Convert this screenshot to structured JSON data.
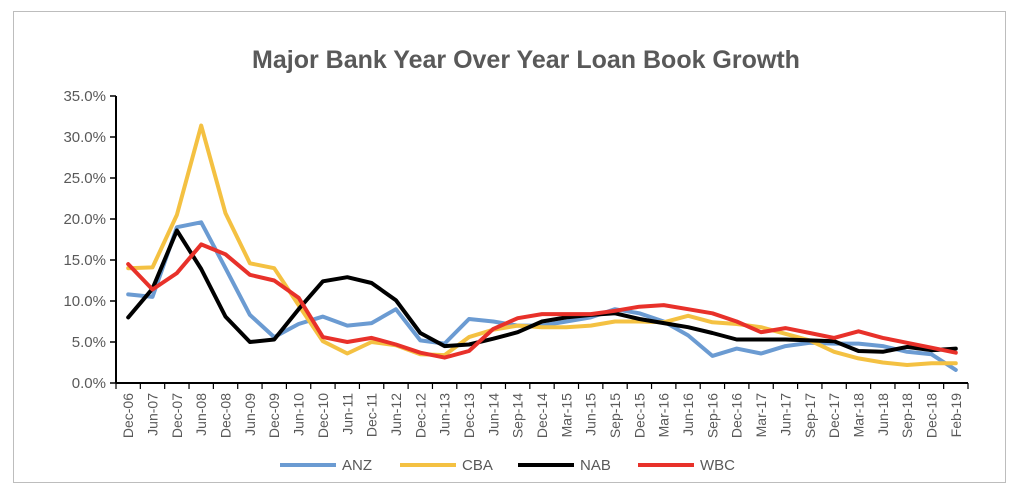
{
  "chart_data": {
    "type": "line",
    "title": "Major Bank Year Over Year Loan Book Growth",
    "xlabel": "",
    "ylabel": "",
    "ylim": [
      0,
      35
    ],
    "yticks": [
      "0.0%",
      "5.0%",
      "10.0%",
      "15.0%",
      "20.0%",
      "25.0%",
      "30.0%",
      "35.0%"
    ],
    "categories": [
      "Dec-06",
      "Jun-07",
      "Dec-07",
      "Jun-08",
      "Dec-08",
      "Jun-09",
      "Dec-09",
      "Jun-10",
      "Dec-10",
      "Jun-11",
      "Dec-11",
      "Jun-12",
      "Dec-12",
      "Jun-13",
      "Dec-13",
      "Jun-14",
      "Sep-14",
      "Dec-14",
      "Mar-15",
      "Jun-15",
      "Sep-15",
      "Dec-15",
      "Mar-16",
      "Jun-16",
      "Sep-16",
      "Dec-16",
      "Mar-17",
      "Jun-17",
      "Sep-17",
      "Dec-17",
      "Mar-18",
      "Jun-18",
      "Sep-18",
      "Dec-18",
      "Feb-19"
    ],
    "grid": false,
    "legend": "bottom",
    "series": [
      {
        "name": "ANZ",
        "color": "#6b9bd2",
        "values": [
          10.8,
          10.5,
          19.0,
          19.6,
          14.0,
          8.3,
          5.6,
          7.2,
          8.1,
          7.0,
          7.3,
          9.0,
          5.2,
          4.8,
          7.8,
          7.5,
          7.0,
          7.0,
          7.5,
          8.0,
          9.0,
          8.5,
          7.5,
          5.8,
          3.3,
          4.2,
          3.6,
          4.5,
          4.9,
          4.8,
          4.8,
          4.5,
          3.8,
          3.5,
          1.6
        ]
      },
      {
        "name": "CBA",
        "color": "#f4c142",
        "values": [
          14.0,
          14.1,
          20.5,
          31.4,
          20.7,
          14.6,
          14.0,
          9.5,
          5.1,
          3.6,
          5.0,
          4.6,
          3.5,
          3.4,
          5.6,
          6.5,
          7.0,
          6.8,
          6.8,
          7.0,
          7.5,
          7.5,
          7.4,
          8.2,
          7.4,
          7.2,
          6.8,
          6.0,
          5.2,
          3.8,
          3.0,
          2.5,
          2.2,
          2.4,
          2.4
        ]
      },
      {
        "name": "NAB",
        "color": "#000000",
        "values": [
          8.0,
          11.5,
          18.6,
          13.9,
          8.1,
          5.0,
          5.3,
          9.0,
          12.4,
          12.9,
          12.2,
          10.1,
          6.1,
          4.5,
          4.7,
          5.4,
          6.2,
          7.5,
          8.0,
          8.3,
          8.5,
          7.8,
          7.3,
          6.8,
          6.1,
          5.3,
          5.3,
          5.3,
          5.2,
          5.1,
          3.9,
          3.8,
          4.4,
          4.0,
          4.2
        ]
      },
      {
        "name": "WBC",
        "color": "#e8312a",
        "values": [
          14.5,
          11.4,
          13.4,
          16.9,
          15.7,
          13.2,
          12.5,
          10.4,
          5.6,
          5.0,
          5.5,
          4.7,
          3.7,
          3.1,
          3.9,
          6.6,
          7.9,
          8.4,
          8.4,
          8.4,
          8.8,
          9.3,
          9.5,
          9.0,
          8.5,
          7.5,
          6.2,
          6.7,
          6.1,
          5.5,
          6.3,
          5.5,
          4.9,
          4.3,
          3.7
        ]
      }
    ]
  }
}
